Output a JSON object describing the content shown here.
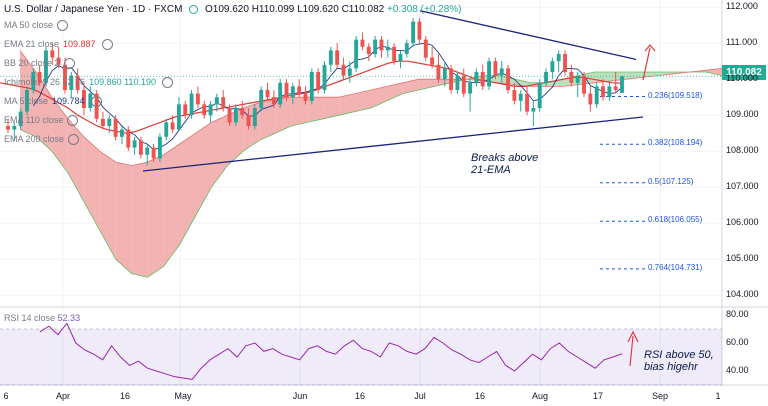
{
  "header": {
    "symbol": "U.S. Dollar / Japanese Yen · 1D · FXCM",
    "ohlc": "O109.620 H110.099 L109.620 C110.082",
    "change": "+0.308 (+0.28%)"
  },
  "indicators": [
    {
      "label": "MA 50 close",
      "value": ""
    },
    {
      "label": "EMA 21 close",
      "value": "109.887"
    },
    {
      "label": "BB 20 close 2",
      "value": ""
    },
    {
      "label": "Ichimoku 9 26 52 26",
      "value": "109.860  110.190"
    },
    {
      "label": "MA 5 close",
      "value": "109.784"
    },
    {
      "label": "EMA 110 close",
      "value": ""
    },
    {
      "label": "EMA 200 close",
      "value": ""
    }
  ],
  "colors": {
    "up": "#26a69a",
    "down": "#ef5350",
    "cloud_bull": "#a5d6a7",
    "cloud_bear": "#ef9a9a",
    "ema21": "#e53935",
    "ma5": "#1e3a8a",
    "trend": "#1a237e",
    "rsi": "#9c27b0",
    "accent": "#e53935"
  },
  "price_axis": {
    "labels": [
      "112.000",
      "111.000",
      "110.000",
      "109.000",
      "108.000",
      "107.000",
      "106.000",
      "105.000",
      "104.000"
    ],
    "last_price": "110.082"
  },
  "rsi_axis": {
    "labels": [
      "80.00",
      "60.00",
      "40.00"
    ]
  },
  "time_axis": {
    "labels": [
      "6",
      "Apr",
      "16",
      "May",
      "Jun",
      "16",
      "Jul",
      "16",
      "Aug",
      "17",
      "Sep",
      "1"
    ]
  },
  "fibs": [
    {
      "label": "0.236(109.518)",
      "price": 109.518
    },
    {
      "label": "0.382(108.194)",
      "price": 108.194
    },
    {
      "label": "0.5(107.125)",
      "price": 107.125
    },
    {
      "label": "0.618(106.055)",
      "price": 106.055
    },
    {
      "label": "0.764(104.731)",
      "price": 104.731
    }
  ],
  "annotations": {
    "breaks": [
      "Breaks above",
      "21-EMA"
    ],
    "rsi": [
      "RSI above 50,",
      "bias higehr"
    ]
  },
  "rsi_header": {
    "label": "RSI 14 close",
    "value": "52.33"
  },
  "chart_data": {
    "type": "candlestick",
    "title": "U.S. Dollar / Japanese Yen · 1D · FXCM",
    "ylim": [
      103.7,
      112.2
    ],
    "rsi_ylim": [
      30,
      85
    ],
    "grid": true,
    "candles": [
      [
        108.7,
        108.9,
        108.5,
        108.6
      ],
      [
        108.6,
        108.8,
        108.3,
        108.7
      ],
      [
        108.7,
        109.2,
        108.6,
        109.1
      ],
      [
        109.1,
        109.8,
        109.0,
        109.7
      ],
      [
        109.7,
        110.3,
        109.6,
        110.2
      ],
      [
        110.2,
        110.4,
        109.8,
        109.9
      ],
      [
        109.9,
        110.9,
        109.8,
        110.8
      ],
      [
        110.8,
        111.0,
        110.4,
        110.6
      ],
      [
        110.6,
        110.9,
        110.3,
        110.4
      ],
      [
        110.4,
        110.6,
        109.6,
        109.7
      ],
      [
        109.7,
        110.2,
        109.5,
        110.1
      ],
      [
        110.1,
        110.3,
        109.6,
        109.7
      ],
      [
        109.7,
        109.9,
        109.0,
        109.2
      ],
      [
        109.2,
        109.8,
        109.1,
        109.6
      ],
      [
        109.6,
        109.7,
        108.8,
        108.9
      ],
      [
        108.9,
        109.1,
        108.6,
        108.7
      ],
      [
        108.7,
        109.0,
        108.5,
        108.9
      ],
      [
        108.9,
        109.0,
        108.3,
        108.4
      ],
      [
        108.4,
        108.7,
        108.2,
        108.6
      ],
      [
        108.6,
        108.7,
        108.0,
        108.1
      ],
      [
        108.1,
        108.4,
        107.9,
        108.3
      ],
      [
        108.3,
        108.4,
        107.8,
        107.9
      ],
      [
        107.9,
        108.2,
        107.6,
        108.1
      ],
      [
        108.1,
        108.2,
        107.7,
        107.8
      ],
      [
        107.8,
        108.5,
        107.7,
        108.4
      ],
      [
        108.4,
        108.9,
        108.3,
        108.8
      ],
      [
        108.8,
        109.0,
        108.5,
        108.6
      ],
      [
        108.6,
        109.5,
        108.6,
        109.3
      ],
      [
        109.3,
        109.4,
        108.9,
        109.0
      ],
      [
        109.0,
        109.7,
        108.9,
        109.6
      ],
      [
        109.6,
        109.8,
        109.2,
        109.3
      ],
      [
        109.3,
        109.4,
        108.9,
        109.0
      ],
      [
        109.0,
        109.4,
        108.8,
        109.3
      ],
      [
        109.3,
        109.6,
        109.1,
        109.5
      ],
      [
        109.5,
        109.7,
        109.1,
        109.2
      ],
      [
        109.2,
        109.3,
        108.7,
        108.8
      ],
      [
        108.8,
        109.3,
        108.7,
        109.2
      ],
      [
        109.2,
        109.4,
        108.9,
        109.0
      ],
      [
        109.0,
        109.2,
        108.6,
        108.7
      ],
      [
        108.7,
        109.3,
        108.6,
        109.2
      ],
      [
        109.2,
        109.8,
        109.1,
        109.7
      ],
      [
        109.7,
        109.9,
        109.4,
        109.5
      ],
      [
        109.5,
        109.7,
        109.2,
        109.3
      ],
      [
        109.3,
        110.0,
        109.2,
        109.9
      ],
      [
        109.9,
        110.0,
        109.4,
        109.5
      ],
      [
        109.5,
        109.9,
        109.3,
        109.8
      ],
      [
        109.8,
        110.0,
        109.5,
        109.6
      ],
      [
        109.6,
        109.8,
        109.3,
        109.4
      ],
      [
        109.4,
        110.3,
        109.3,
        110.2
      ],
      [
        110.2,
        110.3,
        109.6,
        109.7
      ],
      [
        109.7,
        110.5,
        109.6,
        110.4
      ],
      [
        110.4,
        110.9,
        110.2,
        110.8
      ],
      [
        110.8,
        111.0,
        110.3,
        110.4
      ],
      [
        110.4,
        110.6,
        110.0,
        110.1
      ],
      [
        110.1,
        110.5,
        109.9,
        110.3
      ],
      [
        110.3,
        111.2,
        110.2,
        111.1
      ],
      [
        111.1,
        111.3,
        110.8,
        110.9
      ],
      [
        110.9,
        111.0,
        110.5,
        110.7
      ],
      [
        110.7,
        111.2,
        110.6,
        111.1
      ],
      [
        111.1,
        111.2,
        110.6,
        110.8
      ],
      [
        110.8,
        111.1,
        110.6,
        110.9
      ],
      [
        110.9,
        111.0,
        110.4,
        110.5
      ],
      [
        110.5,
        110.8,
        110.3,
        110.7
      ],
      [
        110.7,
        111.1,
        110.6,
        111.0
      ],
      [
        111.0,
        111.7,
        110.9,
        111.6
      ],
      [
        111.6,
        111.7,
        111.0,
        111.1
      ],
      [
        111.1,
        111.2,
        110.5,
        110.6
      ],
      [
        110.6,
        110.9,
        110.3,
        110.4
      ],
      [
        110.4,
        110.7,
        109.9,
        110.0
      ],
      [
        110.0,
        110.5,
        109.8,
        110.3
      ],
      [
        110.3,
        110.4,
        109.6,
        109.7
      ],
      [
        109.7,
        110.2,
        109.6,
        110.1
      ],
      [
        110.1,
        110.3,
        109.5,
        109.6
      ],
      [
        109.6,
        110.0,
        109.1,
        109.9
      ],
      [
        109.9,
        110.3,
        109.8,
        110.2
      ],
      [
        110.2,
        110.4,
        109.7,
        109.8
      ],
      [
        109.8,
        110.6,
        109.7,
        110.5
      ],
      [
        110.5,
        110.6,
        110.0,
        110.1
      ],
      [
        110.1,
        110.5,
        109.9,
        110.3
      ],
      [
        110.3,
        110.4,
        109.6,
        109.7
      ],
      [
        109.7,
        109.9,
        109.3,
        109.4
      ],
      [
        109.4,
        109.7,
        109.1,
        109.6
      ],
      [
        109.6,
        109.8,
        109.0,
        109.1
      ],
      [
        109.1,
        109.4,
        108.7,
        109.2
      ],
      [
        109.2,
        110.0,
        109.1,
        109.9
      ],
      [
        109.9,
        110.3,
        109.8,
        110.2
      ],
      [
        110.2,
        110.6,
        110.0,
        110.5
      ],
      [
        110.5,
        110.8,
        110.2,
        110.7
      ],
      [
        110.7,
        110.8,
        110.1,
        110.2
      ],
      [
        110.2,
        110.4,
        109.8,
        109.9
      ],
      [
        109.9,
        110.2,
        109.5,
        110.1
      ],
      [
        110.1,
        110.2,
        109.5,
        109.6
      ],
      [
        109.6,
        109.8,
        109.1,
        109.3
      ],
      [
        109.3,
        109.9,
        109.2,
        109.8
      ],
      [
        109.8,
        110.0,
        109.4,
        109.5
      ],
      [
        109.5,
        109.9,
        109.4,
        109.8
      ],
      [
        109.8,
        110.2,
        109.6,
        109.7
      ],
      [
        109.62,
        110.099,
        109.62,
        110.082
      ]
    ],
    "ema21": [
      109.9,
      109.85,
      109.8,
      109.75,
      109.65,
      109.5,
      109.35,
      109.2,
      109.0,
      108.85,
      108.7,
      108.6,
      108.55,
      108.5,
      108.55,
      108.65,
      108.75,
      108.85,
      108.95,
      109.0,
      109.05,
      109.1,
      109.15,
      109.2,
      109.25,
      109.3,
      109.35,
      109.4,
      109.45,
      109.5,
      109.55,
      109.6,
      109.65,
      109.75,
      109.85,
      109.95,
      110.05,
      110.15,
      110.25,
      110.35,
      110.45,
      110.5,
      110.5,
      110.45,
      110.4,
      110.35,
      110.3,
      110.2,
      110.1,
      110.0,
      109.95,
      109.9,
      109.85,
      109.8,
      109.8,
      109.85,
      109.9,
      109.95,
      110.0,
      110.05,
      110.05,
      110.0,
      109.95,
      109.9,
      109.887
    ],
    "cloud_a": [
      108.6,
      108.4,
      108.0,
      107.4,
      106.6,
      105.8,
      105.0,
      104.6,
      104.5,
      104.8,
      105.4,
      106.2,
      107.0,
      107.6,
      108.0,
      108.3,
      108.5,
      108.7,
      108.8,
      108.9,
      109.0,
      109.1,
      109.2,
      109.4,
      109.6,
      109.7,
      109.8,
      109.9,
      110.0,
      110.1,
      110.1,
      110.0,
      109.9,
      109.9,
      110.0,
      110.1,
      110.2,
      110.2,
      110.2,
      110.2,
      110.2,
      110.2,
      110.2,
      110.2,
      110.1
    ],
    "cloud_b": [
      110.8,
      110.2,
      109.5,
      108.9,
      108.4,
      108.0,
      107.7,
      107.6,
      107.7,
      107.9,
      108.2,
      108.5,
      108.8,
      109.0,
      109.2,
      109.35,
      109.45,
      109.5,
      109.5,
      109.5,
      109.5,
      109.6,
      109.7,
      109.8,
      109.9,
      110.0,
      110.0,
      110.0,
      110.0,
      109.95,
      109.9,
      109.85,
      109.8,
      109.8,
      109.8,
      109.85,
      109.9,
      109.95,
      110.0,
      110.05,
      110.1,
      110.15,
      110.2,
      110.25,
      110.3
    ],
    "rsi": [
      68,
      72,
      66,
      74,
      60,
      55,
      52,
      48,
      58,
      50,
      44,
      47,
      42,
      40,
      38,
      36,
      35,
      34,
      42,
      48,
      52,
      56,
      50,
      58,
      60,
      54,
      56,
      52,
      50,
      48,
      56,
      58,
      54,
      52,
      58,
      62,
      56,
      54,
      50,
      60,
      58,
      54,
      52,
      56,
      64,
      60,
      55,
      52,
      48,
      46,
      50,
      54,
      44,
      40,
      46,
      52,
      48,
      56,
      60,
      54,
      50,
      46,
      42,
      48,
      50,
      52.33
    ]
  }
}
